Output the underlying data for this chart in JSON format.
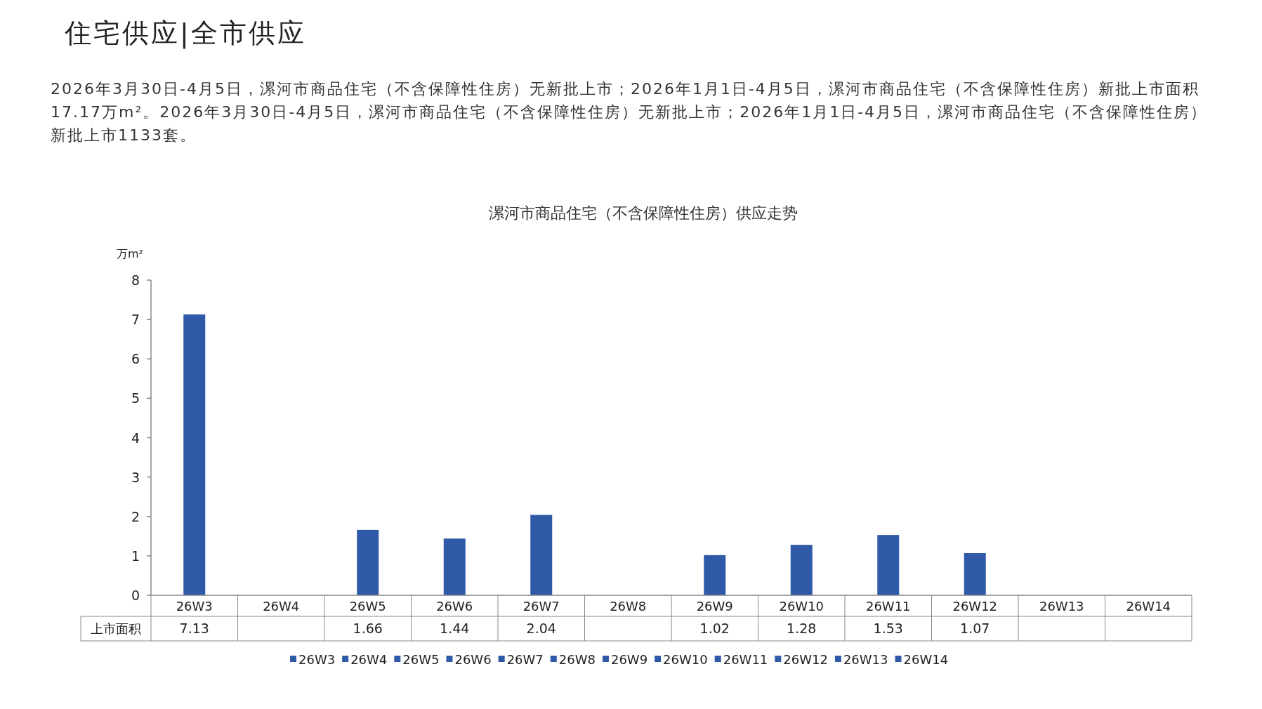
{
  "chart_data": {
    "type": "bar",
    "title": "漯河市商品住宅（不含保障性住房）供应走势",
    "ylabel": "万m²",
    "annotations": [
      "住宅供应|全市供应",
      "2026年3月30日-4月5日，漯河市商品住宅（不含保障性住房）无新批上市；2026年1月1日-4月5日，漯河市商品住宅（不含保障性住房）新批上市面积17.17万m²。2026年3月30日-4月5日，漯河市商品住宅（不含保障性住房）无新批上市；2026年1月1日-4月5日，漯河市商品住宅（不含保障性住房）新批上市1133套。"
    ],
    "categories": [
      "26W3",
      "26W4",
      "26W5",
      "26W6",
      "26W7",
      "26W8",
      "26W9",
      "26W10",
      "26W11",
      "26W12",
      "26W13",
      "26W14"
    ],
    "series": [
      {
        "name": "上市面积",
        "color": "#2f5aa8",
        "values": [
          7.13,
          null,
          1.66,
          1.44,
          2.04,
          null,
          1.02,
          1.28,
          1.53,
          1.07,
          null,
          null
        ]
      }
    ],
    "ylim": [
      0,
      8
    ],
    "yticks": [
      0,
      1,
      2,
      3,
      4,
      5,
      6,
      7,
      8
    ],
    "data_labels": true,
    "legend": "bottom",
    "grid": false
  }
}
